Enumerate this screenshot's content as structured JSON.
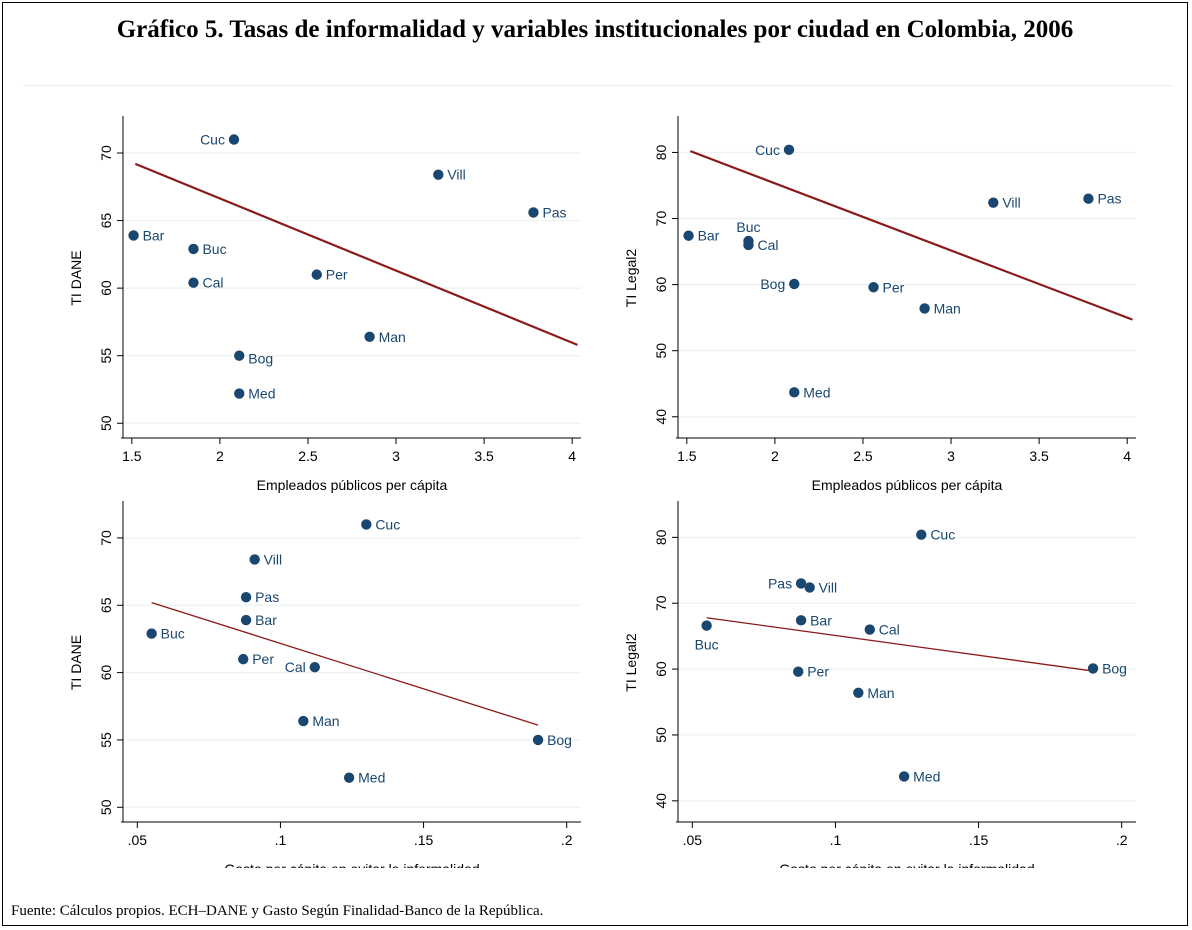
{
  "figure": {
    "title": "Gráfico 5. Tasas de informalidad y variables institucionales  por ciudad en Colombia, 2006",
    "source_note": "Fuente: Cálculos propios. ECH–DANE y Gasto Según Finalidad-Banco de la República."
  },
  "colors": {
    "marker": "#1a476f",
    "fit_line": "#8b1a1a",
    "grid": "#eaf2f3",
    "label": "#1a476f"
  },
  "chart_data": [
    {
      "type": "scatter",
      "xlabel": "Empleados públicos per cápita",
      "ylabel": "TI DANE",
      "xlim": [
        1.45,
        4.05
      ],
      "ylim": [
        49.5,
        72
      ],
      "xticks": [
        1.5,
        2,
        2.5,
        3,
        3.5,
        4
      ],
      "xtick_labels": [
        "1.5",
        "2",
        "2.5",
        "3",
        "3.5",
        "4"
      ],
      "yticks": [
        50,
        55,
        60,
        65,
        70
      ],
      "ytick_labels": [
        "50",
        "55",
        "60",
        "65",
        "70"
      ],
      "grid": true,
      "fit_line": {
        "x": [
          1.52,
          4.03
        ],
        "y": [
          69.2,
          55.8
        ],
        "width": 2.2
      },
      "points": [
        {
          "label": "Cuc",
          "x": 2.08,
          "y": 71.0,
          "label_side": "left"
        },
        {
          "label": "Vill",
          "x": 3.24,
          "y": 68.4,
          "label_side": "right"
        },
        {
          "label": "Pas",
          "x": 3.78,
          "y": 65.6,
          "label_side": "right"
        },
        {
          "label": "Bar",
          "x": 1.51,
          "y": 63.9,
          "label_side": "right"
        },
        {
          "label": "Buc",
          "x": 1.85,
          "y": 62.9,
          "label_side": "right"
        },
        {
          "label": "Per",
          "x": 2.55,
          "y": 61.0,
          "label_side": "right"
        },
        {
          "label": "Cal",
          "x": 1.85,
          "y": 60.4,
          "label_side": "right"
        },
        {
          "label": "Man",
          "x": 2.85,
          "y": 56.4,
          "label_side": "right"
        },
        {
          "label": "Bog",
          "x": 2.11,
          "y": 55.0,
          "label_side": "right-below"
        },
        {
          "label": "Med",
          "x": 2.11,
          "y": 52.2,
          "label_side": "right"
        }
      ]
    },
    {
      "type": "scatter",
      "xlabel": "Empleados públicos per cápita",
      "ylabel": "TI Legal2",
      "xlim": [
        1.45,
        4.05
      ],
      "ylim": [
        38,
        84
      ],
      "xticks": [
        1.5,
        2,
        2.5,
        3,
        3.5,
        4
      ],
      "xtick_labels": [
        "1.5",
        "2",
        "2.5",
        "3",
        "3.5",
        "4"
      ],
      "yticks": [
        40,
        50,
        60,
        70,
        80
      ],
      "ytick_labels": [
        "40",
        "50",
        "60",
        "70",
        "80"
      ],
      "grid": true,
      "fit_line": {
        "x": [
          1.52,
          4.03
        ],
        "y": [
          80.2,
          54.7
        ],
        "width": 2.2
      },
      "points": [
        {
          "label": "Cuc",
          "x": 2.08,
          "y": 80.4,
          "label_side": "left"
        },
        {
          "label": "Vill",
          "x": 3.24,
          "y": 72.4,
          "label_side": "right"
        },
        {
          "label": "Pas",
          "x": 3.78,
          "y": 73.0,
          "label_side": "right"
        },
        {
          "label": "Bar",
          "x": 1.51,
          "y": 67.4,
          "label_side": "right"
        },
        {
          "label": "Buc",
          "x": 1.85,
          "y": 66.6,
          "label_side": "above"
        },
        {
          "label": "Cal",
          "x": 1.85,
          "y": 66.0,
          "label_side": "right"
        },
        {
          "label": "Bog",
          "x": 2.11,
          "y": 60.1,
          "label_side": "left"
        },
        {
          "label": "Per",
          "x": 2.56,
          "y": 59.6,
          "label_side": "right"
        },
        {
          "label": "Man",
          "x": 2.85,
          "y": 56.4,
          "label_side": "right"
        },
        {
          "label": "Med",
          "x": 2.11,
          "y": 43.7,
          "label_side": "right"
        }
      ]
    },
    {
      "type": "scatter",
      "xlabel": "Gasto per cápita en evitar la informalidad",
      "ylabel": "TI DANE",
      "xlim": [
        0.045,
        0.205
      ],
      "ylim": [
        49.5,
        72
      ],
      "xticks": [
        0.05,
        0.1,
        0.15,
        0.2
      ],
      "xtick_labels": [
        ".05",
        ".1",
        ".15",
        ".2"
      ],
      "yticks": [
        50,
        55,
        60,
        65,
        70
      ],
      "ytick_labels": [
        "50",
        "55",
        "60",
        "65",
        "70"
      ],
      "grid": true,
      "fit_line": {
        "x": [
          0.055,
          0.19
        ],
        "y": [
          65.2,
          56.1
        ],
        "width": 1.3
      },
      "points": [
        {
          "label": "Cuc",
          "x": 0.13,
          "y": 71.0,
          "label_side": "right"
        },
        {
          "label": "Vill",
          "x": 0.091,
          "y": 68.4,
          "label_side": "right"
        },
        {
          "label": "Pas",
          "x": 0.088,
          "y": 65.6,
          "label_side": "right"
        },
        {
          "label": "Bar",
          "x": 0.088,
          "y": 63.9,
          "label_side": "right"
        },
        {
          "label": "Buc",
          "x": 0.055,
          "y": 62.9,
          "label_side": "right"
        },
        {
          "label": "Per",
          "x": 0.087,
          "y": 61.0,
          "label_side": "right"
        },
        {
          "label": "Cal",
          "x": 0.112,
          "y": 60.4,
          "label_side": "left"
        },
        {
          "label": "Man",
          "x": 0.108,
          "y": 56.4,
          "label_side": "right"
        },
        {
          "label": "Bog",
          "x": 0.19,
          "y": 55.0,
          "label_side": "right"
        },
        {
          "label": "Med",
          "x": 0.124,
          "y": 52.2,
          "label_side": "right"
        }
      ]
    },
    {
      "type": "scatter",
      "xlabel": "Gasto per cápita en evitar la informalidad",
      "ylabel": "TI Legal2",
      "xlim": [
        0.045,
        0.205
      ],
      "ylim": [
        38,
        84
      ],
      "xticks": [
        0.05,
        0.1,
        0.15,
        0.2
      ],
      "xtick_labels": [
        ".05",
        ".1",
        ".15",
        ".2"
      ],
      "yticks": [
        40,
        50,
        60,
        70,
        80
      ],
      "ytick_labels": [
        "40",
        "50",
        "60",
        "70",
        "80"
      ],
      "grid": true,
      "fit_line": {
        "x": [
          0.055,
          0.19
        ],
        "y": [
          67.8,
          59.7
        ],
        "width": 1.3
      },
      "points": [
        {
          "label": "Cuc",
          "x": 0.13,
          "y": 80.4,
          "label_side": "right"
        },
        {
          "label": "Pas",
          "x": 0.088,
          "y": 73.0,
          "label_side": "left"
        },
        {
          "label": "Vill",
          "x": 0.091,
          "y": 72.4,
          "label_side": "right"
        },
        {
          "label": "Bar",
          "x": 0.088,
          "y": 67.4,
          "label_side": "right"
        },
        {
          "label": "Buc",
          "x": 0.055,
          "y": 66.6,
          "label_side": "below"
        },
        {
          "label": "Cal",
          "x": 0.112,
          "y": 66.0,
          "label_side": "right"
        },
        {
          "label": "Bog",
          "x": 0.19,
          "y": 60.1,
          "label_side": "right"
        },
        {
          "label": "Per",
          "x": 0.087,
          "y": 59.6,
          "label_side": "right"
        },
        {
          "label": "Man",
          "x": 0.108,
          "y": 56.4,
          "label_side": "right"
        },
        {
          "label": "Med",
          "x": 0.124,
          "y": 43.7,
          "label_side": "right"
        }
      ]
    }
  ]
}
